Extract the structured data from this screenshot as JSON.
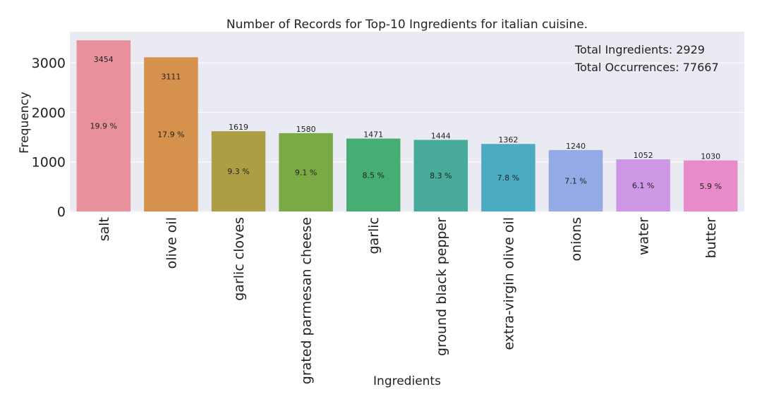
{
  "chart_data": {
    "type": "bar",
    "title": "Number of Records for Top-10 Ingredients for italian cuisine.",
    "xlabel": "Ingredients",
    "ylabel": "Frequency",
    "categories": [
      "salt",
      "olive oil",
      "garlic cloves",
      "grated parmesan cheese",
      "garlic",
      "ground black pepper",
      "extra-virgin olive oil",
      "onions",
      "water",
      "butter"
    ],
    "values": [
      3454,
      3111,
      1619,
      1580,
      1471,
      1444,
      1362,
      1240,
      1052,
      1030
    ],
    "value_labels": [
      "3454",
      "3111",
      "1619",
      "1580",
      "1471",
      "1444",
      "1362",
      "1240",
      "1052",
      "1030"
    ],
    "percent_labels": [
      "19.9 %",
      "17.9 %",
      "9.3 %",
      "9.1 %",
      "8.5 %",
      "8.3 %",
      "7.8 %",
      "7.1 %",
      "6.1 %",
      "5.9 %"
    ],
    "colors": [
      "#e8909c",
      "#d6924c",
      "#ab9e44",
      "#7aa945",
      "#46ae72",
      "#48aa98",
      "#4aabc3",
      "#93aae6",
      "#cd97e5",
      "#e88bc9"
    ],
    "yticks": [
      0,
      1000,
      2000,
      3000
    ],
    "ytick_labels": [
      "0",
      "1000",
      "2000",
      "3000"
    ],
    "ylim": [
      0,
      3627
    ],
    "grid": true,
    "background_color": "#eaeaf2",
    "grid_color": "#ffffff",
    "annotations": [
      "Total Ingredients: 2929",
      "Total Occurrences: 77667"
    ],
    "annotation_placement": "top-right"
  }
}
